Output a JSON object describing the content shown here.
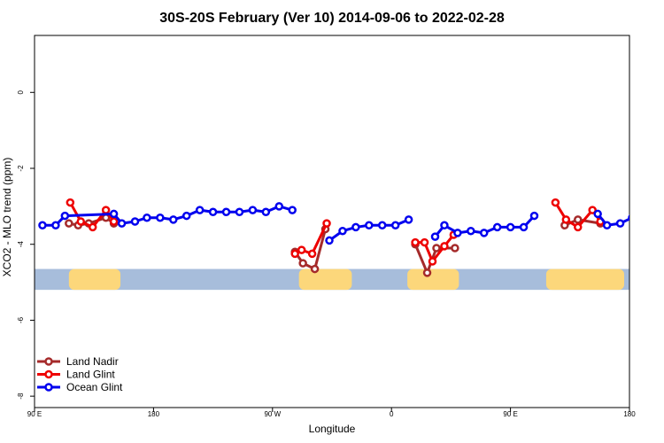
{
  "chart_data": {
    "type": "line",
    "title": "30S-20S February (Ver 10)   2014-09-06 to 2022-02-28",
    "xlabel": "Longitude",
    "ylabel": "XCO2 - MLO trend (ppm)",
    "xlim": [
      90,
      540
    ],
    "ylim": [
      -8.3,
      1.5
    ],
    "x_ticks": [
      {
        "value": 90,
        "label": "90 E"
      },
      {
        "value": 180,
        "label": "180"
      },
      {
        "value": 270,
        "label": "90 W"
      },
      {
        "value": 360,
        "label": "0"
      },
      {
        "value": 450,
        "label": "90 E"
      },
      {
        "value": 540,
        "label": "180"
      }
    ],
    "y_ticks": [
      {
        "value": 0,
        "label": "0"
      },
      {
        "value": -2,
        "label": "-2"
      },
      {
        "value": -4,
        "label": "-4"
      },
      {
        "value": -6,
        "label": "-6"
      },
      {
        "value": -8,
        "label": "-8"
      }
    ],
    "grid": false,
    "legend_position": "bottom-left",
    "background_band": {
      "ylim": [
        -4.65,
        -5.2
      ],
      "ocean_color": "#a7bddb",
      "land_color": "#fcd77b",
      "land_lon_ranges": [
        [
          116,
          155
        ],
        [
          290,
          330
        ],
        [
          372,
          411
        ],
        [
          477,
          536
        ]
      ]
    },
    "series": [
      {
        "name": "Land Nadir",
        "color": "#a52a2a",
        "segments": [
          [
            [
              116,
              -3.45
            ],
            [
              123,
              -3.5
            ],
            [
              131,
              -3.45
            ],
            [
              144,
              -3.3
            ],
            [
              150,
              -3.45
            ]
          ],
          [
            [
              287,
              -4.2
            ],
            [
              293,
              -4.5
            ],
            [
              302,
              -4.65
            ],
            [
              310,
              -3.6
            ]
          ],
          [
            [
              378,
              -4.0
            ],
            [
              387,
              -4.75
            ],
            [
              394,
              -4.1
            ],
            [
              408,
              -4.1
            ]
          ],
          [
            [
              491,
              -3.5
            ],
            [
              501,
              -3.35
            ],
            [
              518,
              -3.45
            ]
          ]
        ]
      },
      {
        "name": "Land Glint",
        "color": "#ee0000",
        "segments": [
          [
            [
              117,
              -2.9
            ],
            [
              125,
              -3.4
            ],
            [
              134,
              -3.55
            ],
            [
              144,
              -3.1
            ],
            [
              150,
              -3.4
            ]
          ],
          [
            [
              287,
              -4.25
            ],
            [
              292,
              -4.15
            ],
            [
              300,
              -4.25
            ],
            [
              311,
              -3.45
            ]
          ],
          [
            [
              378,
              -3.95
            ],
            [
              385,
              -3.95
            ],
            [
              391,
              -4.45
            ],
            [
              400,
              -4.05
            ],
            [
              407,
              -3.75
            ]
          ],
          [
            [
              484,
              -2.9
            ],
            [
              492,
              -3.35
            ],
            [
              501,
              -3.55
            ],
            [
              512,
              -3.1
            ],
            [
              518,
              -3.4
            ]
          ]
        ]
      },
      {
        "name": "Ocean Glint",
        "color": "#0000ee",
        "segments": [
          [
            [
              96,
              -3.5
            ],
            [
              106,
              -3.5
            ],
            [
              113,
              -3.25
            ],
            [
              150,
              -3.2
            ],
            [
              156,
              -3.45
            ],
            [
              166,
              -3.4
            ],
            [
              175,
              -3.3
            ],
            [
              185,
              -3.3
            ],
            [
              195,
              -3.35
            ],
            [
              205,
              -3.25
            ],
            [
              215,
              -3.1
            ],
            [
              225,
              -3.15
            ],
            [
              235,
              -3.15
            ],
            [
              245,
              -3.15
            ],
            [
              255,
              -3.1
            ],
            [
              265,
              -3.15
            ],
            [
              275,
              -3.0
            ],
            [
              285,
              -3.1
            ]
          ],
          [
            [
              313,
              -3.9
            ],
            [
              323,
              -3.65
            ],
            [
              333,
              -3.55
            ],
            [
              343,
              -3.5
            ],
            [
              353,
              -3.5
            ],
            [
              363,
              -3.5
            ],
            [
              373,
              -3.35
            ]
          ],
          [
            [
              393,
              -3.8
            ],
            [
              400,
              -3.5
            ],
            [
              410,
              -3.7
            ],
            [
              420,
              -3.65
            ],
            [
              430,
              -3.7
            ],
            [
              440,
              -3.55
            ],
            [
              450,
              -3.55
            ],
            [
              460,
              -3.55
            ],
            [
              468,
              -3.25
            ]
          ],
          [
            [
              516,
              -3.2
            ],
            [
              523,
              -3.5
            ],
            [
              533,
              -3.45
            ],
            [
              542,
              -3.3
            ]
          ]
        ]
      }
    ]
  }
}
